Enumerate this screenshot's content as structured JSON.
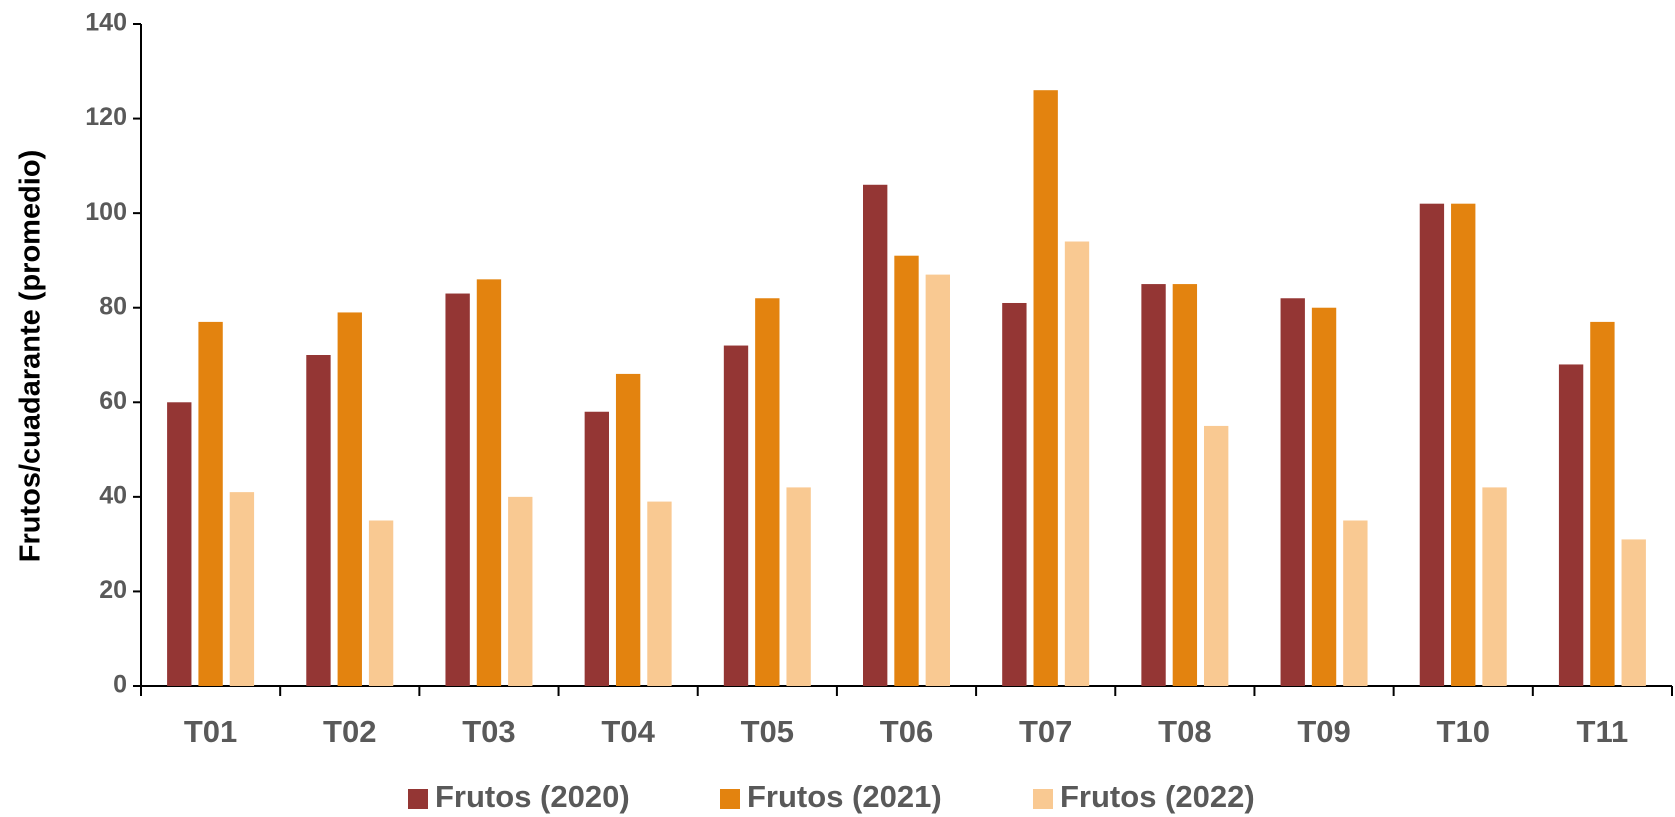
{
  "chart_data": {
    "type": "bar",
    "y_label": "Frutos/cuadarante (promedio)",
    "categories": [
      "T01",
      "T02",
      "T03",
      "T04",
      "T05",
      "T06",
      "T07",
      "T08",
      "T09",
      "T10",
      "T11"
    ],
    "series": [
      {
        "name": "Frutos (2020)",
        "color": "#943634",
        "values": [
          60,
          70,
          83,
          58,
          72,
          106,
          81,
          85,
          82,
          102,
          68
        ]
      },
      {
        "name": "Frutos (2021)",
        "color": "#e3830f",
        "values": [
          77,
          79,
          86,
          66,
          82,
          91,
          126,
          85,
          80,
          102,
          77
        ]
      },
      {
        "name": "Frutos (2022)",
        "color": "#f9c992",
        "values": [
          41,
          35,
          40,
          39,
          42,
          87,
          94,
          55,
          35,
          42,
          31
        ]
      }
    ],
    "ylim": [
      0,
      140
    ],
    "yticks": [
      0,
      20,
      40,
      60,
      80,
      100,
      120,
      140
    ],
    "grid": false,
    "legend": "bottom"
  }
}
